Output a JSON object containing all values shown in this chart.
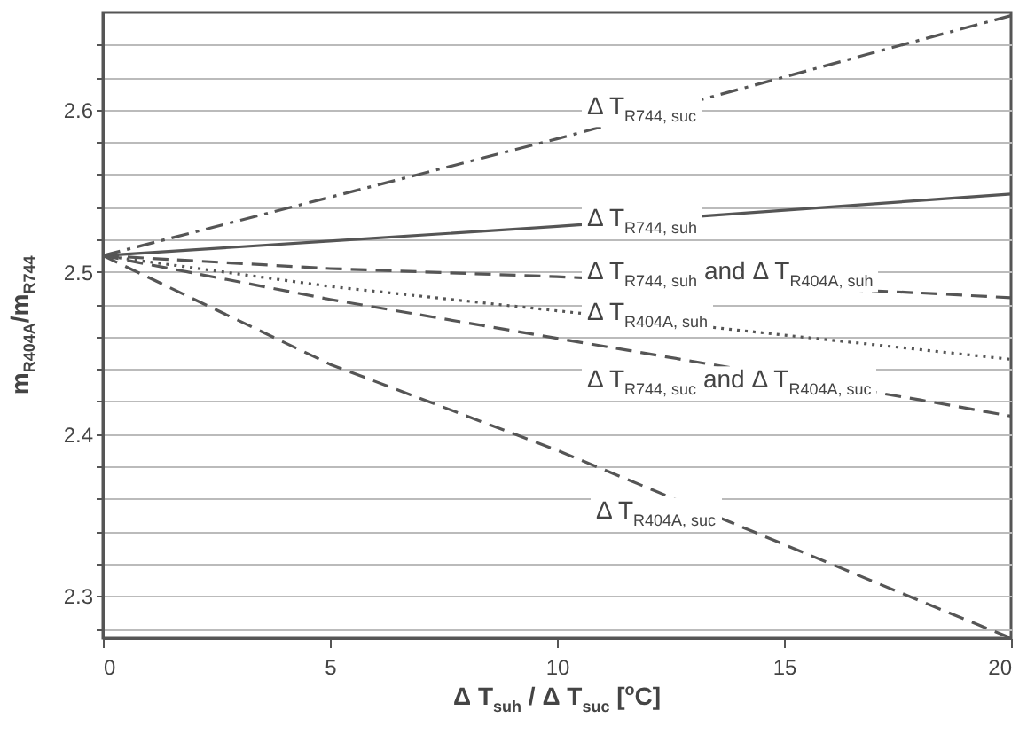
{
  "chart_data": {
    "type": "line",
    "xlabel": "Δ T$_{suh}$ / Δ T$_{suc}$ [$^{o}$C]",
    "ylabel": "m$_{R404A}$/m$_{R744}$",
    "xlim": [
      0,
      20
    ],
    "xticks": [
      0,
      5,
      10,
      15,
      20
    ],
    "ylim": [
      2.274,
      2.66
    ],
    "yticks": [
      {
        "value": 2.28,
        "label": null
      },
      2.3,
      {
        "value": 2.32,
        "label": null
      },
      {
        "value": 2.34,
        "label": null
      },
      {
        "value": 2.36,
        "label": null
      },
      {
        "value": 2.38,
        "label": null
      },
      2.4,
      {
        "value": 2.42,
        "label": null
      },
      {
        "value": 2.44,
        "label": null
      },
      {
        "value": 2.46,
        "label": null
      },
      {
        "value": 2.48,
        "label": null
      },
      2.5,
      {
        "value": 2.52,
        "label": null
      },
      {
        "value": 2.54,
        "label": null
      },
      {
        "value": 2.56,
        "label": null
      },
      {
        "value": 2.58,
        "label": null
      },
      2.6,
      {
        "value": 2.62,
        "label": null
      },
      {
        "value": 2.64,
        "label": null
      }
    ],
    "grid": "y",
    "marker": "none",
    "series": [
      {
        "color": "#555555",
        "line_style": "dashdot",
        "x": [
          0,
          5,
          10,
          18,
          20
        ],
        "values": [
          2.51,
          2.546,
          2.582,
          2.643,
          2.658
        ]
      },
      {
        "color": "#555555",
        "line_style": "solid",
        "x": [
          0,
          5,
          10,
          18,
          20
        ],
        "values": [
          2.51,
          2.519,
          2.528,
          2.544,
          2.548
        ]
      },
      {
        "color": "#555555",
        "line_style": "dashed",
        "x": [
          0,
          5,
          10,
          18,
          20
        ],
        "values": [
          2.51,
          2.502,
          2.497,
          2.487,
          2.484
        ]
      },
      {
        "color": "#555555",
        "line_style": "dotted",
        "x": [
          0,
          5,
          10,
          18,
          20
        ],
        "values": [
          2.51,
          2.491,
          2.476,
          2.452,
          2.446
        ]
      },
      {
        "color": "#555555",
        "line_style": "dashed",
        "x": [
          0,
          5,
          10,
          18,
          20
        ],
        "values": [
          2.51,
          2.483,
          2.459,
          2.421,
          2.411
        ]
      },
      {
        "color": "#555555",
        "line_style": "dashed",
        "x": [
          0,
          5,
          10,
          18,
          20
        ],
        "values": [
          2.51,
          2.443,
          2.39,
          2.297,
          2.274
        ]
      }
    ],
    "annotations": [
      "Δ T$_{R744, suc}$",
      "Δ T$_{R744, suh}$",
      "Δ T$_{R744, suh}$ and Δ T$_{R404A, suh}$",
      "Δ T$_{R404A, suh}$",
      "Δ T$_{R744, suc}$ and Δ T$_{R404A, suc}$",
      "Δ T$_{R404A, suc}$"
    ]
  }
}
